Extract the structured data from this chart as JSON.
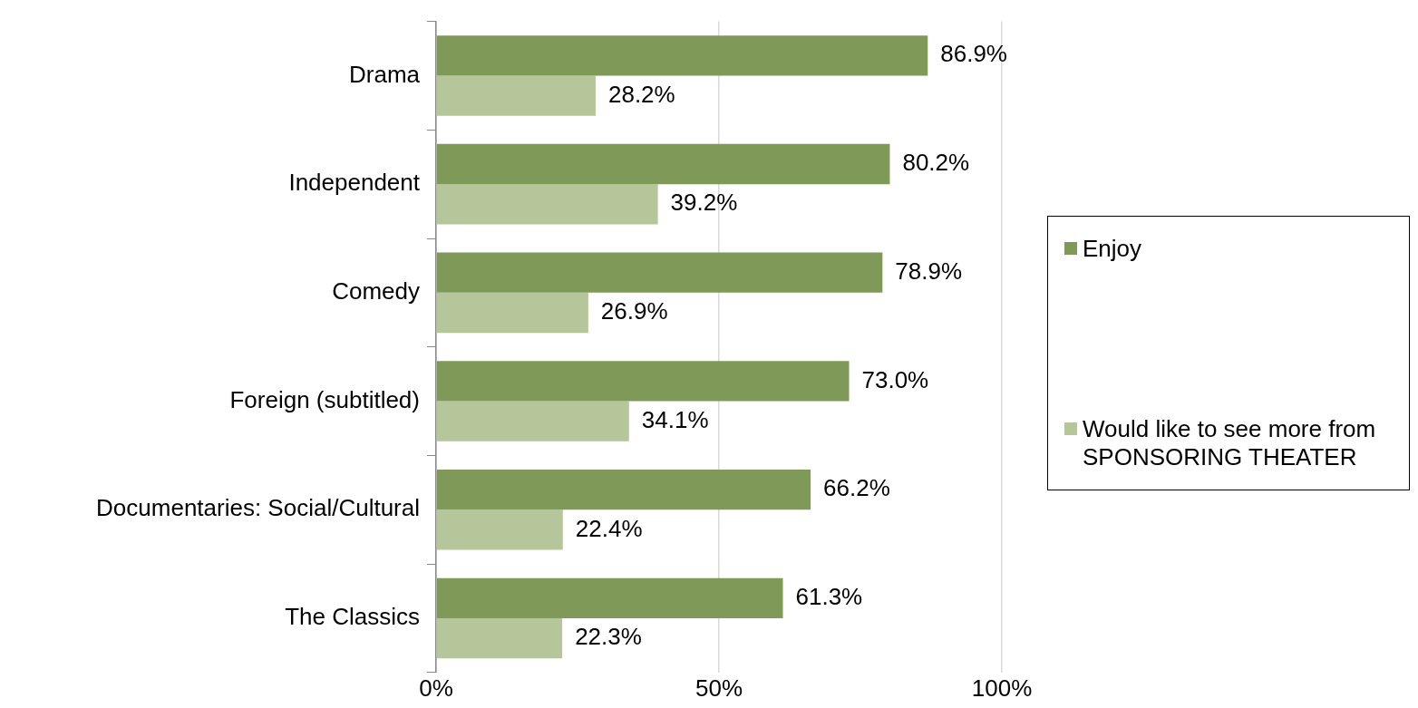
{
  "chart_data": {
    "type": "bar",
    "orientation": "horizontal",
    "categories": [
      "Drama",
      "Independent",
      "Comedy",
      "Foreign (subtitled)",
      "Documentaries: Social/Cultural",
      "The Classics"
    ],
    "series": [
      {
        "name": "Enjoy",
        "color": "#7f9a58",
        "values": [
          86.9,
          80.2,
          78.9,
          73.0,
          66.2,
          61.3
        ]
      },
      {
        "name": "Would like to see more from SPONSORING THEATER",
        "color": "#b5c69a",
        "values": [
          28.2,
          39.2,
          26.9,
          34.1,
          22.4,
          22.3
        ]
      }
    ],
    "value_labels": [
      [
        "86.9%",
        "80.2%",
        "78.9%",
        "73.0%",
        "66.2%",
        "61.3%"
      ],
      [
        "28.2%",
        "39.2%",
        "26.9%",
        "34.1%",
        "22.4%",
        "22.3%"
      ]
    ],
    "xlim": [
      0,
      100
    ],
    "xticks": [
      {
        "value": 0,
        "label": "0%"
      },
      {
        "value": 50,
        "label": "50%"
      },
      {
        "value": 100,
        "label": "100%"
      }
    ],
    "grid": "x",
    "legend": "right"
  }
}
